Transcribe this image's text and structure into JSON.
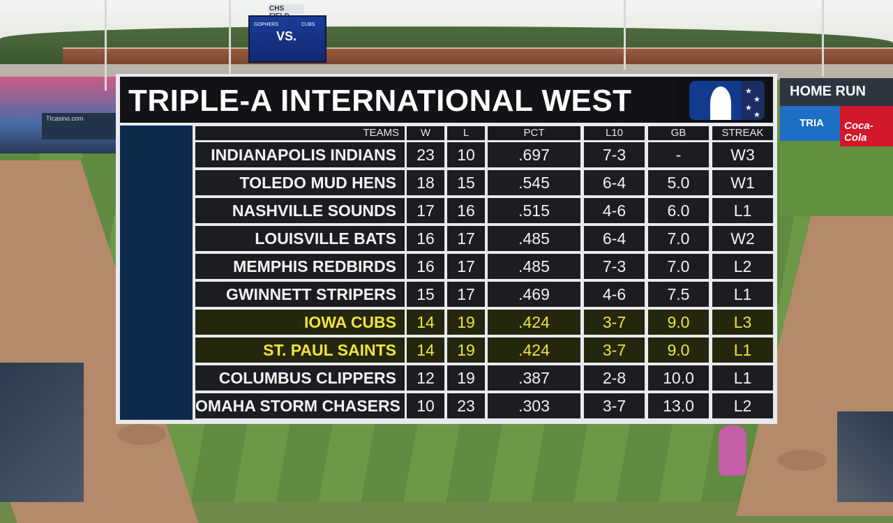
{
  "background": {
    "stadium_sign": "CHS FIELD",
    "scoreboard_left": "GOPHERS",
    "scoreboard_mid": "VS.",
    "scoreboard_right": "CUBS",
    "ad_home_run": "HOME RUN",
    "ad_tria": "TRIA",
    "ad_coke": "Coca-Cola",
    "ad_left": "TIcasino.com"
  },
  "standings": {
    "title": "TRIPLE-A INTERNATIONAL WEST",
    "logo_icon": "milb-logo-icon",
    "highlight_color": "#f2e43a",
    "columns": {
      "team": "TEAMS",
      "w": "W",
      "l": "L",
      "pct": "PCT",
      "l10": "L10",
      "gb": "GB",
      "streak": "STREAK"
    },
    "rows": [
      {
        "team": "INDIANAPOLIS INDIANS",
        "w": "23",
        "l": "10",
        "pct": ".697",
        "l10": "7-3",
        "gb": "-",
        "streak": "W3",
        "highlight": false
      },
      {
        "team": "TOLEDO MUD HENS",
        "w": "18",
        "l": "15",
        "pct": ".545",
        "l10": "6-4",
        "gb": "5.0",
        "streak": "W1",
        "highlight": false
      },
      {
        "team": "NASHVILLE SOUNDS",
        "w": "17",
        "l": "16",
        "pct": ".515",
        "l10": "4-6",
        "gb": "6.0",
        "streak": "L1",
        "highlight": false
      },
      {
        "team": "LOUISVILLE BATS",
        "w": "16",
        "l": "17",
        "pct": ".485",
        "l10": "6-4",
        "gb": "7.0",
        "streak": "W2",
        "highlight": false
      },
      {
        "team": "MEMPHIS REDBIRDS",
        "w": "16",
        "l": "17",
        "pct": ".485",
        "l10": "7-3",
        "gb": "7.0",
        "streak": "L2",
        "highlight": false
      },
      {
        "team": "GWINNETT STRIPERS",
        "w": "15",
        "l": "17",
        "pct": ".469",
        "l10": "4-6",
        "gb": "7.5",
        "streak": "L1",
        "highlight": false
      },
      {
        "team": "IOWA CUBS",
        "w": "14",
        "l": "19",
        "pct": ".424",
        "l10": "3-7",
        "gb": "9.0",
        "streak": "L3",
        "highlight": true
      },
      {
        "team": "ST. PAUL SAINTS",
        "w": "14",
        "l": "19",
        "pct": ".424",
        "l10": "3-7",
        "gb": "9.0",
        "streak": "L1",
        "highlight": true
      },
      {
        "team": "COLUMBUS CLIPPERS",
        "w": "12",
        "l": "19",
        "pct": ".387",
        "l10": "2-8",
        "gb": "10.0",
        "streak": "L1",
        "highlight": false
      },
      {
        "team": "OMAHA STORM CHASERS",
        "w": "10",
        "l": "23",
        "pct": ".303",
        "l10": "3-7",
        "gb": "13.0",
        "streak": "L2",
        "highlight": false
      }
    ]
  }
}
